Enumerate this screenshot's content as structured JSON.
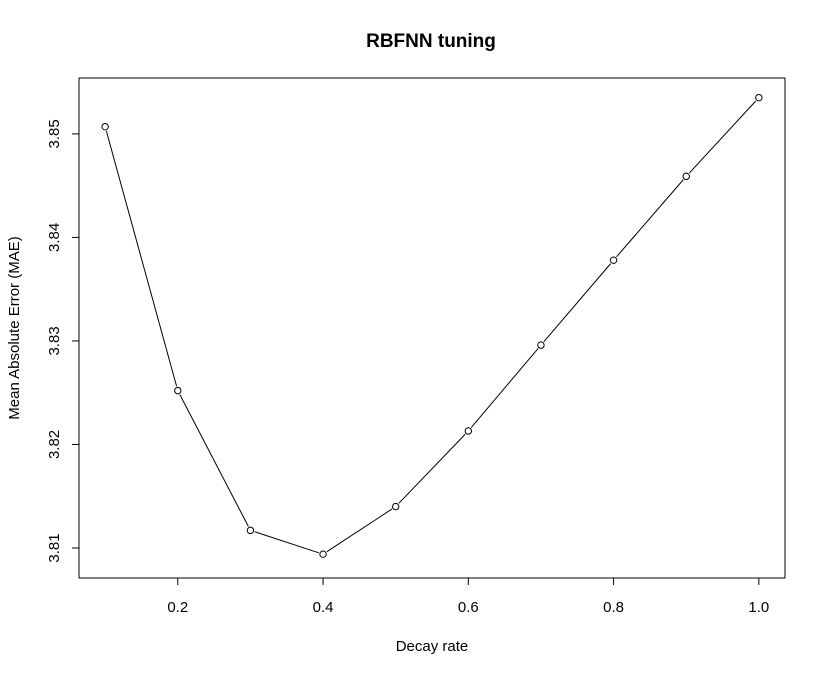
{
  "chart_data": {
    "type": "line",
    "title": "RBFNN tuning",
    "xlabel": "Decay rate",
    "ylabel": "Mean Absolute Error (MAE)",
    "x": [
      0.1,
      0.2,
      0.3,
      0.4,
      0.5,
      0.6,
      0.7,
      0.8,
      0.9,
      1.0
    ],
    "series": [
      {
        "values": [
          3.8507,
          3.8252,
          3.8117,
          3.8094,
          3.814,
          3.8213,
          3.8296,
          3.8378,
          3.8459,
          3.8535
        ],
        "color": "#000000",
        "marker": "open-circle"
      }
    ],
    "xlim": [
      0.064,
      1.036
    ],
    "ylim": [
      3.8071,
      3.8554
    ],
    "xticks": [
      0.2,
      0.4,
      0.6,
      0.8,
      1.0
    ],
    "xtick_labels": [
      "0.2",
      "0.4",
      "0.6",
      "0.8",
      "1.0"
    ],
    "yticks": [
      3.81,
      3.82,
      3.83,
      3.84,
      3.85
    ],
    "ytick_labels": [
      "3.81",
      "3.82",
      "3.83",
      "3.84",
      "3.85"
    ],
    "grid": false,
    "legend": "none"
  }
}
